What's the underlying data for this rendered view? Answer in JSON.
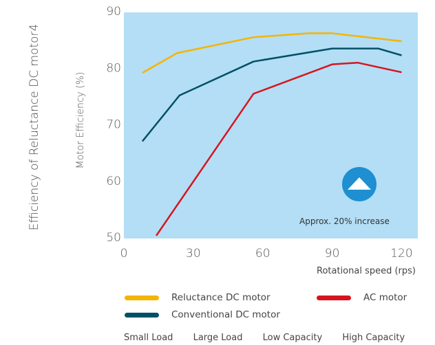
{
  "side_title": "Efficiency of Reluctance DC motor4",
  "annotation": "Approx. 20% increase",
  "load_labels": [
    "Small Load",
    "Large Load",
    "Low Capacity",
    "High Capacity"
  ],
  "colors": {
    "plot_bg": "#b3def5",
    "arrow_badge": "#1e8fd0"
  },
  "icons": {
    "badge": "up-arrow-icon"
  },
  "chart_data": {
    "type": "line",
    "title": "",
    "xlabel": "Rotational speed (rps)",
    "ylabel": "Motor Efficiency (%)",
    "xlim": [
      0,
      127
    ],
    "ylim": [
      50,
      90
    ],
    "xticks": [
      0,
      30,
      60,
      90,
      120
    ],
    "yticks": [
      50,
      60,
      70,
      80,
      90
    ],
    "grid": false,
    "legend": "bottom",
    "series": [
      {
        "name": "Reluctance DC motor",
        "color": "#f5b400",
        "x": [
          8,
          23,
          56,
          80,
          90,
          120
        ],
        "y": [
          79.3,
          82.8,
          85.6,
          86.3,
          86.3,
          84.9
        ]
      },
      {
        "name": "Conventional DC motor",
        "color": "#005066",
        "x": [
          8,
          24,
          56,
          90,
          110,
          120
        ],
        "y": [
          67.2,
          75.3,
          81.3,
          83.6,
          83.6,
          82.4
        ]
      },
      {
        "name": "AC motor",
        "color": "#d7141e",
        "x": [
          14,
          56,
          90,
          101,
          120
        ],
        "y": [
          50.5,
          75.6,
          80.8,
          81.1,
          79.4
        ]
      }
    ]
  }
}
